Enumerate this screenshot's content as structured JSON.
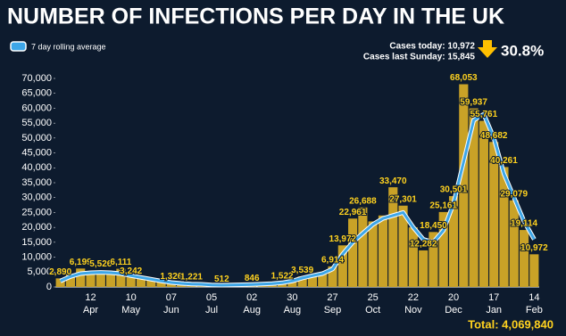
{
  "chart_data": {
    "type": "bar",
    "title": "NUMBER OF INFECTIONS PER DAY IN THE UK",
    "summary": {
      "cases_today": "Cases today: 10,972",
      "cases_last_sunday": "Cases last Sunday: 15,845",
      "change": "30.8%",
      "total": "Total: 4,069,840"
    },
    "color": "#c9a227",
    "categories": [
      null,
      null,
      null,
      "12",
      null,
      null,
      null,
      "10",
      null,
      null,
      null,
      "07",
      null,
      null,
      null,
      "05",
      null,
      null,
      null,
      "02",
      null,
      null,
      null,
      "30",
      null,
      null,
      null,
      "27",
      null,
      null,
      null,
      "25",
      null,
      null,
      null,
      "22",
      null,
      null,
      null,
      "20",
      null,
      null,
      null,
      "17",
      null,
      null,
      null,
      "14"
    ],
    "months": [
      null,
      null,
      null,
      "Apr",
      null,
      null,
      null,
      "May",
      null,
      null,
      null,
      "Jun",
      null,
      null,
      null,
      "Jul",
      null,
      null,
      null,
      "Aug",
      null,
      null,
      null,
      "Aug",
      null,
      null,
      null,
      "Sep",
      null,
      null,
      null,
      "Oct",
      null,
      null,
      null,
      "Nov",
      null,
      null,
      null,
      "Dec",
      null,
      null,
      null,
      "Jan",
      null,
      null,
      null,
      "Feb"
    ],
    "values": [
      2890,
      4500,
      6199,
      5000,
      5526,
      4800,
      6111,
      3242,
      3000,
      2500,
      2000,
      1326,
      1200,
      1221,
      900,
      700,
      512,
      650,
      750,
      846,
      900,
      1100,
      1522,
      1800,
      3539,
      3500,
      4500,
      6914,
      13972,
      22961,
      26688,
      22000,
      24000,
      33470,
      27301,
      20000,
      12282,
      18450,
      25161,
      30501,
      68053,
      59937,
      55761,
      48682,
      40261,
      29079,
      19114,
      10972
    ],
    "value_labels": [
      "2,890",
      null,
      "6,199",
      null,
      "5,526",
      null,
      "6,111",
      "3,242",
      null,
      null,
      null,
      "1,326",
      null,
      "1,221",
      null,
      null,
      "512",
      null,
      null,
      "846",
      null,
      null,
      "1,522",
      null,
      "3,539",
      null,
      null,
      "6,914",
      "13,972",
      "22,961",
      "26,688",
      null,
      null,
      "33,470",
      "27,301",
      null,
      "12,282",
      "18,450",
      "25,161",
      "30,501",
      "68,053",
      "59,937",
      "55,761",
      "48,682",
      "40,261",
      "29,079",
      "19,114",
      "10,972"
    ],
    "line_series": {
      "name": "7 day rolling average",
      "color": "#3da6e8",
      "values": [
        2000,
        3500,
        4500,
        4800,
        4900,
        4800,
        4500,
        3800,
        3200,
        2600,
        2000,
        1500,
        1200,
        1000,
        900,
        700,
        600,
        650,
        750,
        850,
        950,
        1100,
        1400,
        2000,
        3000,
        3800,
        4500,
        6000,
        11000,
        15000,
        18000,
        21000,
        23000,
        24000,
        25000,
        20000,
        16000,
        15000,
        19000,
        28000,
        42000,
        56000,
        58000,
        50000,
        38000,
        30000,
        22000,
        16000
      ]
    },
    "ylim": [
      0,
      70000
    ],
    "yticks": [
      0,
      {
        "value": 5000,
        "label": "5,000"
      },
      {
        "value": 10000,
        "label": "10,000"
      },
      {
        "value": 15000,
        "label": "15,000"
      },
      {
        "value": 20000,
        "label": "20,000"
      },
      {
        "value": 25000,
        "label": "25,000"
      },
      {
        "value": 30000,
        "label": "30,000"
      },
      {
        "value": 35000,
        "label": "35,000"
      },
      {
        "value": 40000,
        "label": "40,000"
      },
      {
        "value": 45000,
        "label": "45,000"
      },
      {
        "value": 50000,
        "label": "50,000"
      },
      {
        "value": 55000,
        "label": "55,000"
      },
      {
        "value": 60000,
        "label": "60,000"
      },
      {
        "value": 65000,
        "label": "65,000"
      },
      {
        "value": 70000,
        "label": "70,000"
      }
    ]
  }
}
